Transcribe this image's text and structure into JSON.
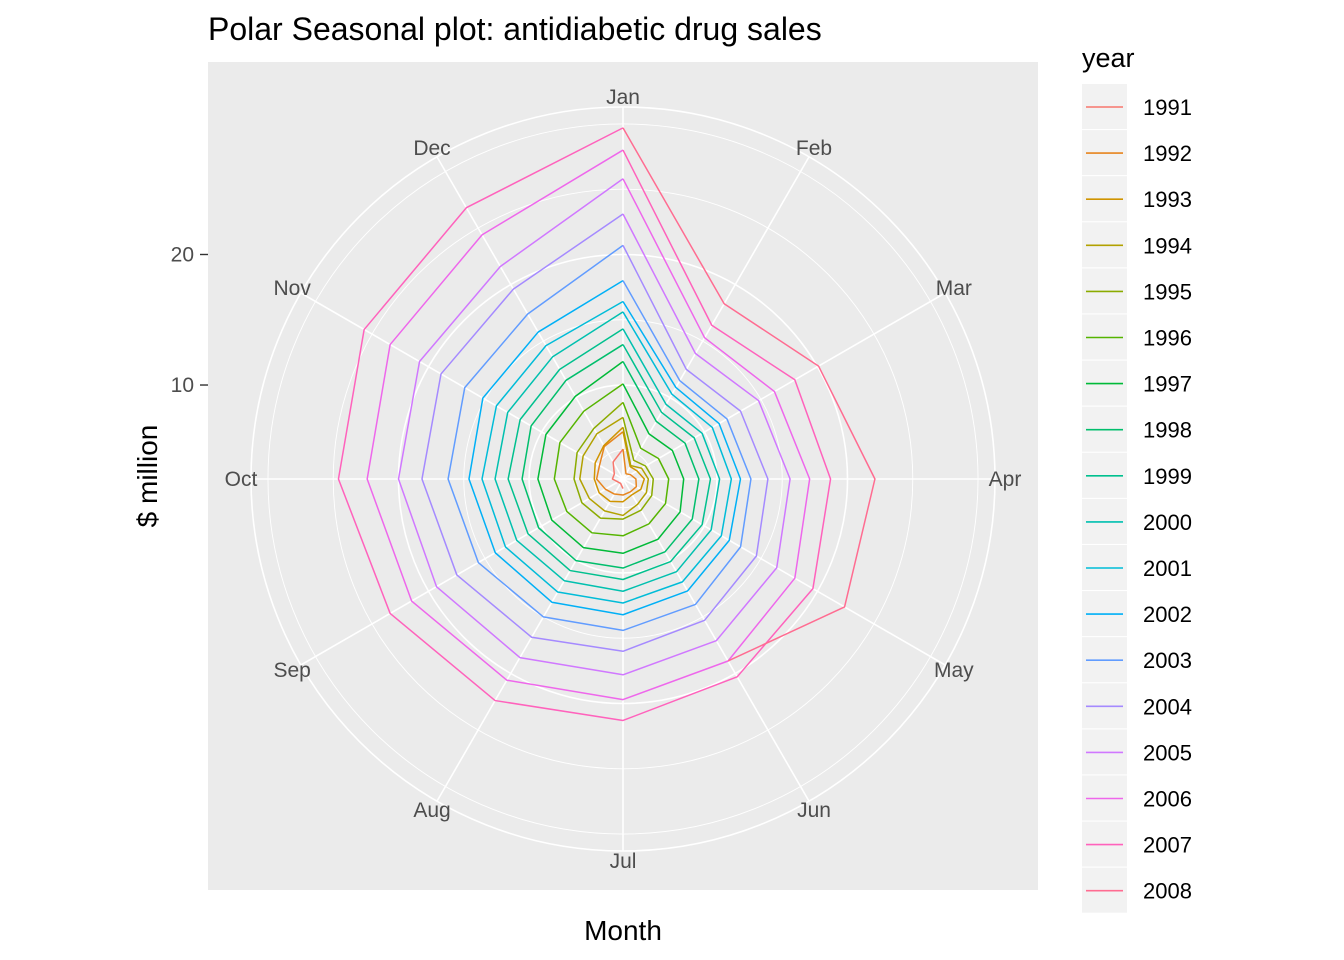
{
  "chart_data": {
    "type": "line",
    "coord": "polar",
    "title": "Polar Seasonal plot: antidiabetic drug sales",
    "xlabel": "Month",
    "ylabel": "$ million",
    "theta_labels": [
      "Jan",
      "Feb",
      "Mar",
      "Apr",
      "May",
      "Jun",
      "Jul",
      "Aug",
      "Sep",
      "Oct",
      "Nov",
      "Dec"
    ],
    "r_ticks": [
      10,
      20
    ],
    "r_range": [
      2.8,
      31.3
    ],
    "legend_title": "year",
    "legend_position": "right",
    "panel_background": "#ebebeb",
    "grid_color": "#ffffff",
    "series": [
      {
        "name": "1991",
        "color": "#F8766D",
        "values": [
          null,
          null,
          null,
          null,
          null,
          null,
          3.53,
          3.18,
          3.25,
          3.61,
          3.57,
          4.31
        ]
      },
      {
        "name": "1992",
        "color": "#E7851E",
        "values": [
          5.09,
          3.26,
          3.46,
          3.79,
          3.98,
          3.93,
          4.03,
          4.13,
          4.36,
          4.82,
          4.88,
          5.67
        ]
      },
      {
        "name": "1993",
        "color": "#D09400",
        "values": [
          6.42,
          3.9,
          4.04,
          4.43,
          4.38,
          4.19,
          4.54,
          4.78,
          4.91,
          5.0,
          5.26,
          5.75
        ]
      },
      {
        "name": "1994",
        "color": "#B2A100",
        "values": [
          6.76,
          3.99,
          4.45,
          4.74,
          4.87,
          5.04,
          5.59,
          5.62,
          5.78,
          6.11,
          6.33,
          6.8
        ]
      },
      {
        "name": "1995",
        "color": "#8BAB00",
        "values": [
          7.52,
          4.45,
          4.79,
          5.12,
          5.34,
          5.56,
          5.87,
          6.26,
          6.44,
          6.55,
          6.86,
          7.27
        ]
      },
      {
        "name": "1996",
        "color": "#55B400",
        "values": [
          8.67,
          5.52,
          5.94,
          6.3,
          6.56,
          6.77,
          7.15,
          7.56,
          7.77,
          8.06,
          8.38,
          8.8
        ]
      },
      {
        "name": "1997",
        "color": "#00BA38",
        "values": [
          10.09,
          6.79,
          7.17,
          7.45,
          7.85,
          8.14,
          8.49,
          8.87,
          9.1,
          9.32,
          9.62,
          10.11
        ]
      },
      {
        "name": "1998",
        "color": "#00BE6C",
        "values": [
          11.8,
          7.9,
          8.29,
          8.61,
          8.93,
          9.24,
          9.62,
          10.02,
          10.27,
          10.53,
          10.93,
          11.53
        ]
      },
      {
        "name": "1999",
        "color": "#00C08E",
        "values": [
          13.1,
          8.7,
          9.1,
          9.5,
          9.8,
          10.1,
          10.5,
          10.9,
          11.2,
          11.6,
          11.9,
          12.5
        ]
      },
      {
        "name": "2000",
        "color": "#00C0AF",
        "values": [
          14.3,
          9.4,
          9.8,
          10.2,
          10.6,
          11.0,
          11.4,
          11.8,
          12.2,
          12.6,
          13.0,
          13.6
        ]
      },
      {
        "name": "2001",
        "color": "#00BCD8",
        "values": [
          15.6,
          10.3,
          10.7,
          11.1,
          11.5,
          11.9,
          12.3,
          12.8,
          13.2,
          13.6,
          14.0,
          14.6
        ]
      },
      {
        "name": "2002",
        "color": "#00B0F6",
        "values": [
          16.4,
          10.9,
          11.3,
          11.8,
          12.2,
          12.7,
          13.2,
          13.7,
          14.1,
          14.6,
          15.2,
          15.8
        ]
      },
      {
        "name": "2003",
        "color": "#619CFF",
        "values": [
          18.0,
          11.5,
          12.0,
          12.6,
          13.2,
          13.9,
          14.4,
          15.0,
          15.6,
          16.2,
          16.8,
          17.4
        ]
      },
      {
        "name": "2004",
        "color": "#A58AFF",
        "values": [
          20.7,
          12.5,
          13.2,
          13.9,
          14.6,
          15.3,
          16.0,
          16.8,
          17.5,
          18.2,
          18.9,
          19.6
        ]
      },
      {
        "name": "2005",
        "color": "#D078FF",
        "values": [
          23.1,
          13.9,
          14.8,
          15.6,
          16.4,
          17.1,
          17.8,
          18.6,
          19.3,
          20.0,
          20.8,
          21.6
        ]
      },
      {
        "name": "2006",
        "color": "#EE67EB",
        "values": [
          25.8,
          15.3,
          16.2,
          17.1,
          18.0,
          18.9,
          19.7,
          20.6,
          21.5,
          22.4,
          23.4,
          24.4
        ]
      },
      {
        "name": "2007",
        "color": "#FF62BC",
        "values": [
          28.0,
          16.4,
          18.0,
          18.7,
          19.6,
          20.3,
          21.3,
          22.4,
          23.4,
          24.6,
          25.7,
          26.8
        ]
      },
      {
        "name": "2008",
        "color": "#FF6C91",
        "values": [
          29.7,
          18.3,
          20.1,
          22.1,
          22.4,
          18.9,
          null,
          null,
          null,
          null,
          null,
          null
        ]
      }
    ]
  }
}
